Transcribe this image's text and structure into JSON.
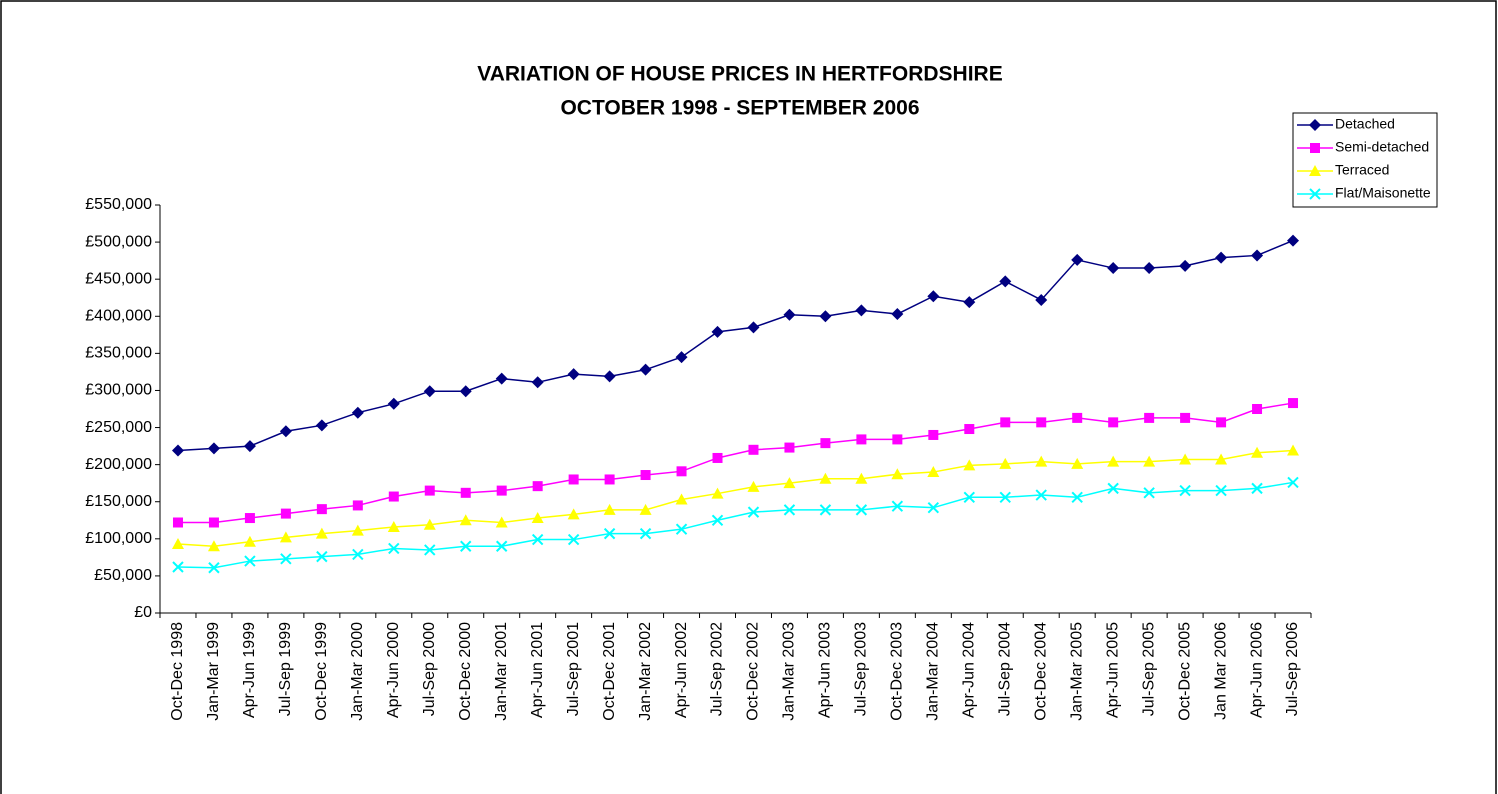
{
  "chart_data": {
    "type": "line",
    "title": [
      "VARIATION OF HOUSE PRICES IN HERTFORDSHIRE",
      "OCTOBER 1998 - SEPTEMBER 2006"
    ],
    "categories": [
      "Oct-Dec 1998",
      "Jan-Mar 1999",
      "Apr-Jun 1999",
      "Jul-Sep 1999",
      "Oct-Dec 1999",
      "Jan-Mar 2000",
      "Apr-Jun 2000",
      "Jul-Sep 2000",
      "Oct-Dec 2000",
      "Jan-Mar 2001",
      "Apr-Jun 2001",
      "Jul-Sep 2001",
      "Oct-Dec 2001",
      "Jan-Mar 2002",
      "Apr-Jun 2002",
      "Jul-Sep 2002",
      "Oct-Dec 2002",
      "Jan-Mar 2003",
      "Apr-Jun 2003",
      "Jul-Sep 2003",
      "Oct-Dec 2003",
      "Jan-Mar 2004",
      "Apr-Jun 2004",
      "Jul-Sep 2004",
      "Oct-Dec 2004",
      "Jan-Mar 2005",
      "Apr-Jun 2005",
      "Jul-Sep 2005",
      "Oct-Dec 2005",
      "Jan Mar 2006",
      "Apr-Jun 2006",
      "Jul-Sep 2006"
    ],
    "series": [
      {
        "name": "Detached",
        "color": "#000080",
        "marker": "diamond",
        "values": [
          219000,
          222000,
          225000,
          245000,
          253000,
          270000,
          282000,
          299000,
          299000,
          316000,
          311000,
          322000,
          319000,
          328000,
          345000,
          379000,
          385000,
          402000,
          400000,
          408000,
          403000,
          427000,
          419000,
          447000,
          422000,
          476000,
          465000,
          465000,
          468000,
          479000,
          482000,
          502000
        ]
      },
      {
        "name": "Semi-detached",
        "color": "#ff00ff",
        "marker": "square",
        "values": [
          122000,
          122000,
          128000,
          134000,
          140000,
          145000,
          157000,
          165000,
          162000,
          165000,
          171000,
          180000,
          180000,
          186000,
          191000,
          209000,
          220000,
          223000,
          229000,
          234000,
          234000,
          240000,
          248000,
          257000,
          257000,
          263000,
          257000,
          263000,
          263000,
          257000,
          275000,
          283000
        ]
      },
      {
        "name": "Terraced",
        "color": "#ffff00",
        "marker": "triangle",
        "values": [
          93000,
          90000,
          96000,
          102000,
          107000,
          111000,
          116000,
          119000,
          125000,
          122000,
          128000,
          133000,
          139000,
          139000,
          153000,
          161000,
          170000,
          175000,
          181000,
          181000,
          187000,
          190000,
          199000,
          201000,
          204000,
          201000,
          204000,
          204000,
          207000,
          207000,
          216000,
          219000
        ]
      },
      {
        "name": "Flat/Maisonette",
        "color": "#00ffff",
        "marker": "x",
        "values": [
          62000,
          61000,
          70000,
          73000,
          76000,
          79000,
          87000,
          85000,
          90000,
          90000,
          99000,
          99000,
          107000,
          107000,
          113000,
          125000,
          136000,
          139000,
          139000,
          139000,
          144000,
          142000,
          156000,
          156000,
          159000,
          156000,
          168000,
          162000,
          165000,
          165000,
          168000,
          176000
        ]
      }
    ],
    "ylim": [
      0,
      550000
    ],
    "yticks": [
      {
        "value": 0,
        "label": "£0"
      },
      {
        "value": 50000,
        "label": "£50,000"
      },
      {
        "value": 100000,
        "label": "£100,000"
      },
      {
        "value": 150000,
        "label": "£150,000"
      },
      {
        "value": 200000,
        "label": "£200,000"
      },
      {
        "value": 250000,
        "label": "£250,000"
      },
      {
        "value": 300000,
        "label": "£300,000"
      },
      {
        "value": 350000,
        "label": "£350,000"
      },
      {
        "value": 400000,
        "label": "£400,000"
      },
      {
        "value": 450000,
        "label": "£450,000"
      },
      {
        "value": 500000,
        "label": "£500,000"
      },
      {
        "value": 550000,
        "label": "£550,000"
      }
    ],
    "legend": "top-right"
  }
}
